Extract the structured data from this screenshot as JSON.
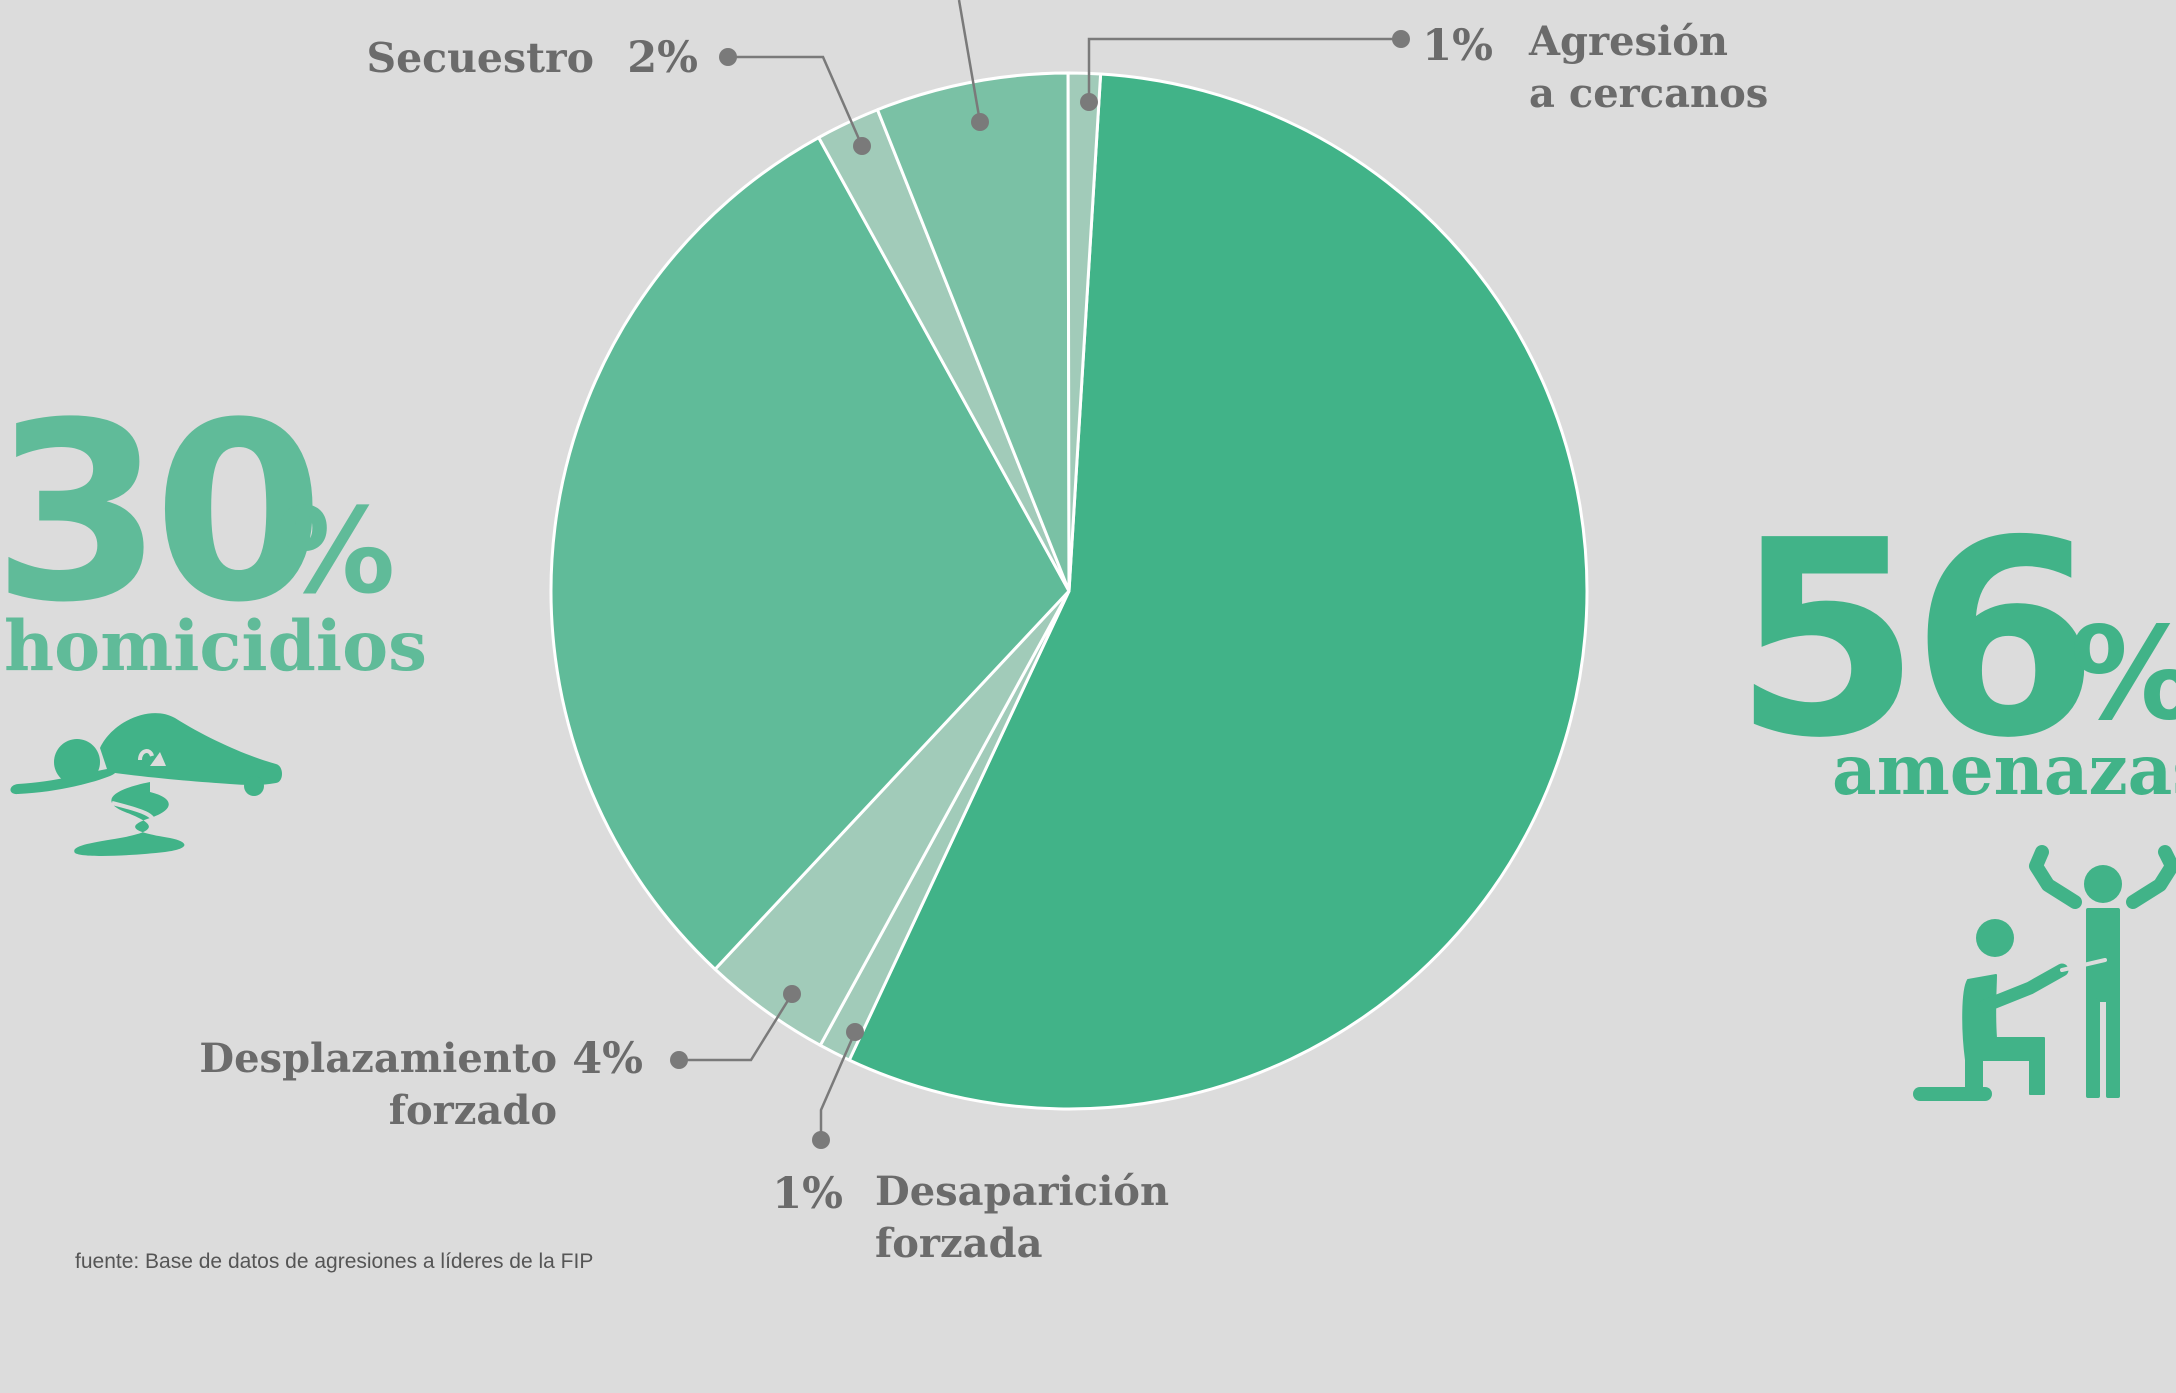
{
  "chart_data": {
    "type": "pie",
    "slices": [
      {
        "label": "amenazas",
        "value": 56,
        "display": "56%",
        "color": "#41b388"
      },
      {
        "label": "Desaparición forzada",
        "value": 1,
        "display": "1%",
        "color": "#a1cbb9"
      },
      {
        "label": "Desplazamiento forzado",
        "value": 4,
        "display": "4%",
        "color": "#a1cbb9"
      },
      {
        "label": "homicidios",
        "value": 30,
        "display": "30%",
        "color": "#60bb99"
      },
      {
        "label": "Secuestro",
        "value": 2,
        "display": "2%",
        "color": "#a1cbb9"
      },
      {
        "label": "",
        "value": 6,
        "display": "",
        "color": "#7ac1a5"
      },
      {
        "label": "Agresión a cercanos",
        "value": 1,
        "display": "1%",
        "color": "#a1cbb9"
      }
    ]
  },
  "labels": {
    "secuestro": {
      "name": "Secuestro",
      "pct": "2%"
    },
    "agresion": {
      "name_line1": "Agresión",
      "name_line2": "a cercanos",
      "pct": "1%"
    },
    "desplazamiento": {
      "name_line1": "Desplazamiento",
      "name_line2": "forzado",
      "pct": "4%"
    },
    "desaparicion": {
      "name_line1": "Desaparición",
      "name_line2": "forzada",
      "pct": "1%"
    }
  },
  "callouts": {
    "homicidios": {
      "number": "30",
      "unit": "%",
      "label": "homicidios"
    },
    "amenazas": {
      "number": "56",
      "unit": "%",
      "label": "amenazas"
    }
  },
  "source": "fuente: Base de datos de agresiones a líderes de la FIP",
  "colors": {
    "background": "#dcdcdc",
    "text_gray": "#6b6b6b",
    "homicidios": "#60bb99",
    "amenazas": "#41b388",
    "leader": "#7a7a7a"
  }
}
